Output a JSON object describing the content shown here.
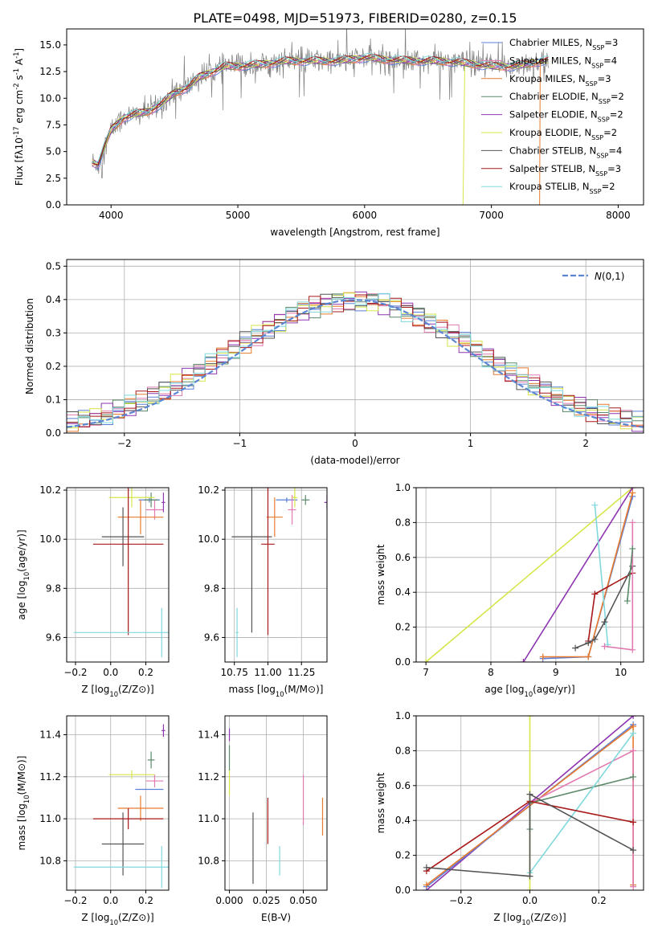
{
  "figure": {
    "title": "PLATE=0498, MJD=51973, FIBERID=0280, z=0.15"
  },
  "colors": {
    "Chabrier MILES": "#5b7fd8",
    "Salpeter MILES": "#e07ab0",
    "Kroupa MILES": "#e87a2e",
    "Chabrier ELODIE": "#5a8a6a",
    "Salpeter ELODIE": "#8e35b0",
    "Kroupa ELODIE": "#d6e64a",
    "Chabrier STELIB": "#555555",
    "Salpeter STELIB": "#a81818",
    "Kroupa STELIB": "#7fd8dc",
    "data": "#808080",
    "normal": "#5b86d4"
  },
  "chart_data": [
    {
      "id": "spectrum",
      "type": "line",
      "title": "PLATE=0498, MJD=51973, FIBERID=0280, z=0.15",
      "xlabel": "wavelength [Angstrom, rest frame]",
      "ylabel": "Flux [f$_\\lambda$10$^{-17}$ erg cm$^{-2}$ s$^{-1}$ A$^{-1}$]",
      "xlim": [
        3650,
        8200
      ],
      "ylim": [
        0,
        16.5
      ],
      "xticks": [
        4000,
        5000,
        6000,
        7000,
        8000
      ],
      "yticks": [
        0.0,
        2.5,
        5.0,
        7.5,
        10.0,
        12.5,
        15.0
      ],
      "ytick_labels": [
        "0.0",
        "2.5",
        "5.0",
        "7.5",
        "10.0",
        "12.5",
        "15.0"
      ],
      "grid": false,
      "legend_position": "upper right",
      "x_range_data": [
        3850,
        7450
      ],
      "continuum": {
        "x": [
          3850,
          3900,
          3950,
          4000,
          4100,
          4200,
          4300,
          4400,
          4500,
          4600,
          4700,
          4800,
          4900,
          5000,
          5200,
          5400,
          5600,
          5800,
          6000,
          6200,
          6400,
          6600,
          6800,
          7000,
          7200,
          7400
        ],
        "y": [
          4.0,
          3.8,
          5.5,
          7.0,
          8.2,
          8.5,
          8.8,
          9.5,
          10.5,
          11.0,
          12.0,
          12.5,
          13.0,
          13.0,
          13.2,
          13.5,
          13.5,
          13.5,
          13.8,
          13.6,
          13.5,
          13.5,
          13.3,
          13.0,
          13.0,
          13.5
        ]
      },
      "series": [
        {
          "name": "Chabrier MILES, N$_{SSP}$=3"
        },
        {
          "name": "Salpeter MILES, N$_{SSP}$=4"
        },
        {
          "name": "Kroupa MILES, N$_{SSP}$=3"
        },
        {
          "name": "Chabrier ELODIE, N$_{SSP}$=2"
        },
        {
          "name": "Salpeter ELODIE, N$_{SSP}$=2"
        },
        {
          "name": "Kroupa ELODIE, N$_{SSP}$=2"
        },
        {
          "name": "Chabrier STELIB, N$_{SSP}$=4"
        },
        {
          "name": "Salpeter STELIB, N$_{SSP}$=3"
        },
        {
          "name": "Kroupa STELIB, N$_{SSP}$=2"
        }
      ]
    },
    {
      "id": "residuals",
      "type": "histogram",
      "xlabel": "(data-model)/error",
      "ylabel": "Normed distribution",
      "xlim": [
        -2.5,
        2.5
      ],
      "ylim": [
        0,
        0.52
      ],
      "xticks": [
        -2,
        -1,
        0,
        1,
        2
      ],
      "xtick_labels": [
        "−2",
        "−1",
        "0",
        "1",
        "2"
      ],
      "yticks": [
        0.0,
        0.1,
        0.2,
        0.3,
        0.4,
        0.5
      ],
      "ytick_labels": [
        "0.0",
        "0.1",
        "0.2",
        "0.3",
        "0.4",
        "0.5"
      ],
      "grid": true,
      "legend_position": "upper right",
      "legend_label": "$\\mathcal{N}(0,1)$",
      "bin_width": 0.1,
      "bin_start": -2.5,
      "reference_curve": "normal(0,1)"
    },
    {
      "id": "age-Z",
      "type": "errorbar",
      "xlabel": "Z [log$_{10}$(Z/Z$_\\odot$)]",
      "ylabel": "age  [log$_{10}$(age/yr)]",
      "xlim": [
        -0.25,
        0.33
      ],
      "ylim": [
        9.5,
        10.21
      ],
      "xticks": [
        -0.2,
        0.0,
        0.2
      ],
      "xtick_labels": [
        "−0.2",
        "0.0",
        "0.2"
      ],
      "yticks": [
        9.6,
        9.8,
        10.0,
        10.2
      ],
      "ytick_labels": [
        "9.6",
        "9.8",
        "10.0",
        "10.2"
      ],
      "grid": true,
      "points": [
        {
          "series": "Chabrier MILES",
          "x": 0.22,
          "y": 10.16,
          "xerr": 0.06,
          "yerr": 0.01
        },
        {
          "series": "Salpeter MILES",
          "x": 0.25,
          "y": 10.12,
          "xerr": 0.05,
          "yerr": 0.04
        },
        {
          "series": "Kroupa MILES",
          "x": 0.17,
          "y": 10.09,
          "xerr": 0.13,
          "yerr": 0.07
        },
        {
          "series": "Chabrier ELODIE",
          "x": 0.23,
          "y": 10.16,
          "xerr": 0.04,
          "yerr": 0.03
        },
        {
          "series": "Salpeter ELODIE",
          "x": 0.3,
          "y": 10.15,
          "xerr": 0.01,
          "yerr": 0.04
        },
        {
          "series": "Kroupa ELODIE",
          "x": 0.12,
          "y": 10.17,
          "xerr": 0.13,
          "yerr": 0.04
        },
        {
          "series": "Chabrier STELIB",
          "x": 0.07,
          "y": 10.01,
          "xerr": 0.12,
          "yerr": 0.12
        },
        {
          "series": "Salpeter STELIB",
          "x": 0.1,
          "y": 9.98,
          "xerr": 0.2,
          "yerr": 0.37
        },
        {
          "series": "Kroupa STELIB",
          "x": 0.29,
          "y": 9.62,
          "xerr": 0.5,
          "yerr": 0.1
        }
      ]
    },
    {
      "id": "age-mass",
      "type": "errorbar",
      "xlabel": "mass [log$_{10}$(M/M$_\\odot$)]",
      "ylabel": "",
      "xlim": [
        10.68,
        11.44
      ],
      "ylim": [
        9.5,
        10.21
      ],
      "xticks": [
        10.75,
        11.0,
        11.25
      ],
      "xtick_labels": [
        "10.75",
        "11.00",
        "11.25"
      ],
      "yticks": [
        9.6,
        9.8,
        10.0,
        10.2
      ],
      "ytick_labels": [
        "9.6",
        "9.8",
        "10.0",
        "10.2"
      ],
      "grid": true,
      "points": [
        {
          "series": "Chabrier MILES",
          "x": 11.14,
          "y": 10.16,
          "xerr": 0.08,
          "yerr": 0.01
        },
        {
          "series": "Salpeter MILES",
          "x": 11.18,
          "y": 10.12,
          "xerr": 0.03,
          "yerr": 0.06
        },
        {
          "series": "Kroupa MILES",
          "x": 11.05,
          "y": 10.09,
          "xerr": 0.06,
          "yerr": 0.08
        },
        {
          "series": "Chabrier ELODIE",
          "x": 11.28,
          "y": 10.16,
          "xerr": 0.03,
          "yerr": 0.02
        },
        {
          "series": "Salpeter ELODIE",
          "x": 11.44,
          "y": 10.15,
          "xerr": 0.02,
          "yerr": 0.03
        },
        {
          "series": "Kroupa ELODIE",
          "x": 11.2,
          "y": 10.17,
          "xerr": 0.02,
          "yerr": 0.04
        },
        {
          "series": "Chabrier STELIB",
          "x": 10.88,
          "y": 10.01,
          "xerr": 0.15,
          "yerr": 0.39
        },
        {
          "series": "Salpeter STELIB",
          "x": 11.0,
          "y": 9.98,
          "xerr": 0.05,
          "yerr": 0.37
        },
        {
          "series": "Kroupa STELIB",
          "x": 10.77,
          "y": 9.62,
          "xerr": 0.01,
          "yerr": 0.1
        }
      ]
    },
    {
      "id": "weight-age",
      "type": "line",
      "xlabel": "age  [log$_{10}$(age/yr)]",
      "ylabel": "mass weight",
      "xlim": [
        6.85,
        10.35
      ],
      "ylim": [
        0,
        1.0
      ],
      "xticks": [
        7,
        8,
        9,
        10
      ],
      "xtick_labels": [
        "7",
        "8",
        "9",
        "10"
      ],
      "yticks": [
        0.0,
        0.2,
        0.4,
        0.6,
        0.8,
        1.0
      ],
      "ytick_labels": [
        "0.0",
        "0.2",
        "0.4",
        "0.6",
        "0.8",
        "1.0"
      ],
      "grid": true,
      "series": [
        {
          "series": "Kroupa ELODIE",
          "x": [
            7.0,
            10.18
          ],
          "y": [
            0.0,
            1.0
          ]
        },
        {
          "series": "Salpeter ELODIE",
          "x": [
            8.5,
            10.18
          ],
          "y": [
            0.0,
            1.0
          ]
        },
        {
          "series": "Chabrier MILES",
          "x": [
            8.8,
            9.5,
            10.18
          ],
          "y": [
            0.02,
            0.03,
            0.95
          ]
        },
        {
          "series": "Kroupa MILES",
          "x": [
            8.8,
            9.5,
            10.18
          ],
          "y": [
            0.03,
            0.03,
            0.97
          ]
        },
        {
          "series": "Kroupa STELIB",
          "x": [
            9.6,
            9.8
          ],
          "y": [
            0.9,
            0.1
          ]
        },
        {
          "series": "Salpeter STELIB",
          "x": [
            9.5,
            9.6,
            10.18
          ],
          "y": [
            0.12,
            0.39,
            0.51
          ]
        },
        {
          "series": "Chabrier STELIB",
          "x": [
            9.3,
            9.5,
            9.6,
            9.75,
            10.18
          ],
          "y": [
            0.08,
            0.11,
            0.13,
            0.23,
            0.55
          ]
        },
        {
          "series": "Salpeter MILES",
          "x": [
            9.75,
            10.18,
            10.18
          ],
          "y": [
            0.09,
            0.07,
            0.8
          ]
        },
        {
          "series": "Chabrier ELODIE",
          "x": [
            10.1,
            10.18
          ],
          "y": [
            0.35,
            0.65
          ]
        }
      ]
    },
    {
      "id": "mass-Z",
      "type": "errorbar",
      "xlabel": "Z [log$_{10}$(Z/Z$_\\odot$)]",
      "ylabel": "mass [log$_{10}$(M/M$_\\odot$)]",
      "xlim": [
        -0.25,
        0.33
      ],
      "ylim": [
        10.66,
        11.49
      ],
      "xticks": [
        -0.2,
        0.0,
        0.2
      ],
      "xtick_labels": [
        "−0.2",
        "0.0",
        "0.2"
      ],
      "yticks": [
        10.8,
        11.0,
        11.2,
        11.4
      ],
      "ytick_labels": [
        "10.8",
        "11.0",
        "11.2",
        "11.4"
      ],
      "grid": true,
      "points": [
        {
          "series": "Chabrier MILES",
          "x": 0.22,
          "y": 11.14,
          "xerr": 0.08,
          "yerr": 0.0
        },
        {
          "series": "Salpeter MILES",
          "x": 0.25,
          "y": 11.18,
          "xerr": 0.05,
          "yerr": 0.03
        },
        {
          "series": "Kroupa MILES",
          "x": 0.17,
          "y": 11.05,
          "xerr": 0.13,
          "yerr": 0.06
        },
        {
          "series": "Chabrier ELODIE",
          "x": 0.23,
          "y": 11.28,
          "xerr": 0.02,
          "yerr": 0.04
        },
        {
          "series": "Salpeter ELODIE",
          "x": 0.3,
          "y": 11.42,
          "xerr": 0.01,
          "yerr": 0.03
        },
        {
          "series": "Kroupa ELODIE",
          "x": 0.12,
          "y": 11.21,
          "xerr": 0.13,
          "yerr": 0.02
        },
        {
          "series": "Chabrier STELIB",
          "x": 0.07,
          "y": 10.88,
          "xerr": 0.12,
          "yerr": 0.15
        },
        {
          "series": "Salpeter STELIB",
          "x": 0.1,
          "y": 11.0,
          "xerr": 0.2,
          "yerr": 0.05
        },
        {
          "series": "Kroupa STELIB",
          "x": 0.29,
          "y": 10.77,
          "xerr": 0.5,
          "yerr": 0.1
        }
      ]
    },
    {
      "id": "mass-EBV",
      "type": "errorbar",
      "xlabel": "E(B-V)",
      "ylabel": "",
      "xlim": [
        -0.003,
        0.066
      ],
      "ylim": [
        10.66,
        11.49
      ],
      "xticks": [
        0.0,
        0.025,
        0.05
      ],
      "xtick_labels": [
        "0.000",
        "0.025",
        "0.050"
      ],
      "yticks": [
        10.8,
        11.0,
        11.2,
        11.4
      ],
      "ytick_labels": [
        "10.8",
        "11.0",
        "11.2",
        "11.4"
      ],
      "grid": true,
      "points": [
        {
          "series": "Chabrier MILES",
          "x": 0.0,
          "y": 11.14,
          "xerr": 0.0,
          "yerr": 0.0
        },
        {
          "series": "Salpeter MILES",
          "x": 0.05,
          "y": 11.09,
          "xerr": 0.0,
          "yerr": 0.12
        },
        {
          "series": "Kroupa MILES",
          "x": 0.063,
          "y": 11.01,
          "xerr": 0.0,
          "yerr": 0.09
        },
        {
          "series": "Chabrier ELODIE",
          "x": 0.0,
          "y": 11.29,
          "xerr": 0.0,
          "yerr": 0.06
        },
        {
          "series": "Salpeter ELODIE",
          "x": 0.0,
          "y": 11.4,
          "xerr": 0.0,
          "yerr": 0.03
        },
        {
          "series": "Kroupa ELODIE",
          "x": 0.0,
          "y": 11.17,
          "xerr": 0.0,
          "yerr": 0.06
        },
        {
          "series": "Chabrier STELIB",
          "x": 0.016,
          "y": 10.86,
          "xerr": 0.0,
          "yerr": 0.17
        },
        {
          "series": "Salpeter STELIB",
          "x": 0.026,
          "y": 10.99,
          "xerr": 0.0,
          "yerr": 0.11
        },
        {
          "series": "Kroupa STELIB",
          "x": 0.034,
          "y": 10.8,
          "xerr": 0.0,
          "yerr": 0.07
        }
      ]
    },
    {
      "id": "weight-Z",
      "type": "line",
      "xlabel": "Z [log$_{10}$(Z/Z$_\\odot$)]",
      "ylabel": "mass weight",
      "xlim": [
        -0.33,
        0.33
      ],
      "ylim": [
        0,
        1.0
      ],
      "xticks": [
        -0.2,
        0.0,
        0.2
      ],
      "xtick_labels": [
        "−0.2",
        "0.0",
        "0.2"
      ],
      "yticks": [
        0.0,
        0.2,
        0.4,
        0.6,
        0.8,
        1.0
      ],
      "ytick_labels": [
        "0.0",
        "0.2",
        "0.4",
        "0.6",
        "0.8",
        "1.0"
      ],
      "grid": true,
      "series": [
        {
          "series": "Kroupa ELODIE",
          "x": [
            0.0,
            0.0
          ],
          "y": [
            0.0,
            1.0
          ]
        },
        {
          "series": "Salpeter ELODIE",
          "x": [
            -0.3,
            0.3
          ],
          "y": [
            0.0,
            1.0
          ]
        },
        {
          "series": "Chabrier MILES",
          "x": [
            -0.3,
            0.3
          ],
          "y": [
            0.02,
            0.95
          ]
        },
        {
          "series": "Kroupa MILES",
          "x": [
            -0.3,
            0.3,
            0.3
          ],
          "y": [
            0.03,
            0.94,
            0.03
          ]
        },
        {
          "series": "Salpeter MILES",
          "x": [
            0.0,
            0.3,
            0.3
          ],
          "y": [
            0.5,
            0.8,
            0.02
          ]
        },
        {
          "series": "Chabrier ELODIE",
          "x": [
            0.0,
            0.0,
            0.3
          ],
          "y": [
            0.35,
            0.5,
            0.65
          ]
        },
        {
          "series": "Kroupa STELIB",
          "x": [
            0.0,
            0.3
          ],
          "y": [
            0.1,
            0.9
          ]
        },
        {
          "series": "Salpeter STELIB",
          "x": [
            -0.3,
            0.0,
            0.3
          ],
          "y": [
            0.11,
            0.51,
            0.39
          ]
        },
        {
          "series": "Chabrier STELIB",
          "x": [
            -0.3,
            0.0,
            0.0,
            0.3
          ],
          "y": [
            0.13,
            0.08,
            0.55,
            0.23
          ]
        }
      ]
    }
  ]
}
